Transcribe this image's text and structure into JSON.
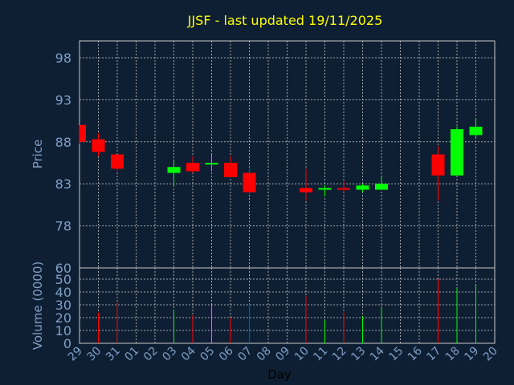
{
  "chart_data": {
    "type": "candlestick",
    "title": "JJSF - last updated 19/11/2025",
    "xlabel": "Day",
    "ylabel": "Price",
    "volume_label": "Volume (0000)",
    "ylim": [
      73,
      100
    ],
    "yticks": [
      78,
      83,
      88,
      93,
      98
    ],
    "volume_ylim": [
      0,
      55
    ],
    "volume_yticks": [
      0,
      10,
      20,
      30,
      40,
      50
    ],
    "volume_top_label": "60",
    "x_ticks": [
      "29",
      "30",
      "31",
      "01",
      "02",
      "03",
      "04",
      "05",
      "06",
      "07",
      "08",
      "09",
      "10",
      "11",
      "12",
      "13",
      "14",
      "15",
      "16",
      "17",
      "18",
      "19",
      "20"
    ],
    "grid": true,
    "up_color": "#00ff00",
    "down_color": "#ff0000",
    "candles": [
      {
        "day": "29",
        "open": 90.0,
        "high": 90.0,
        "low": 87.8,
        "close": 88.0,
        "volume": 0
      },
      {
        "day": "30",
        "open": 88.3,
        "high": 89.0,
        "low": 86.3,
        "close": 86.8,
        "volume": 24
      },
      {
        "day": "31",
        "open": 86.5,
        "high": 86.5,
        "low": 84.5,
        "close": 84.8,
        "volume": 32
      },
      {
        "day": "03",
        "open": 84.3,
        "high": 85.8,
        "low": 82.8,
        "close": 85.0,
        "volume": 26
      },
      {
        "day": "04",
        "open": 85.5,
        "high": 86.3,
        "low": 84.3,
        "close": 84.5,
        "volume": 22
      },
      {
        "day": "05",
        "open": 85.3,
        "high": 86.5,
        "low": 84.5,
        "close": 85.5,
        "volume": 30
      },
      {
        "day": "06",
        "open": 85.5,
        "high": 86.3,
        "low": 83.8,
        "close": 83.8,
        "volume": 20
      },
      {
        "day": "07",
        "open": 84.3,
        "high": 84.8,
        "low": 81.8,
        "close": 82.0,
        "volume": 31
      },
      {
        "day": "10",
        "open": 82.5,
        "high": 84.8,
        "low": 81.0,
        "close": 82.0,
        "volume": 37
      },
      {
        "day": "11",
        "open": 82.3,
        "high": 82.8,
        "low": 81.5,
        "close": 82.5,
        "volume": 18
      },
      {
        "day": "12",
        "open": 82.5,
        "high": 83.3,
        "low": 82.0,
        "close": 82.3,
        "volume": 24
      },
      {
        "day": "13",
        "open": 82.3,
        "high": 83.0,
        "low": 82.0,
        "close": 82.8,
        "volume": 21
      },
      {
        "day": "14",
        "open": 82.3,
        "high": 83.8,
        "low": 82.3,
        "close": 83.0,
        "volume": 28
      },
      {
        "day": "17",
        "open": 86.5,
        "high": 87.5,
        "low": 81.0,
        "close": 84.0,
        "volume": 50
      },
      {
        "day": "18",
        "open": 84.0,
        "high": 89.8,
        "low": 84.0,
        "close": 89.5,
        "volume": 43
      },
      {
        "day": "19",
        "open": 88.8,
        "high": 90.8,
        "low": 88.5,
        "close": 89.8,
        "volume": 45
      }
    ]
  }
}
